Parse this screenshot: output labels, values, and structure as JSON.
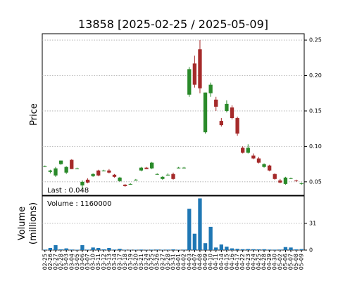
{
  "chart_data": {
    "type": "candlestick",
    "title": "13858   [2025-02-25 / 2025-05-09]",
    "ylabel": "Price",
    "volume_ylabel": [
      "Volume",
      "(millions)"
    ],
    "last_annotation": "Last : 0.048",
    "volume_annotation": "Volume : 1160000",
    "up_color": "#2a8a2a",
    "down_color": "#a52a2a",
    "volume_color": "#1f77b4",
    "grid": true,
    "categories": [
      "02-25",
      "02-26",
      "02-27",
      "02-28",
      "03-03",
      "03-04",
      "03-05",
      "03-06",
      "03-07",
      "03-10",
      "03-11",
      "03-12",
      "03-13",
      "03-14",
      "03-17",
      "03-18",
      "03-19",
      "03-20",
      "03-21",
      "03-24",
      "03-25",
      "03-26",
      "03-27",
      "03-28",
      "03-31",
      "04-01",
      "04-02",
      "04-03",
      "04-07",
      "04-08",
      "04-09",
      "04-10",
      "04-11",
      "04-14",
      "04-15",
      "04-16",
      "04-17",
      "04-22",
      "04-23",
      "04-24",
      "04-25",
      "04-28",
      "04-29",
      "04-30",
      "05-02",
      "05-06",
      "05-07",
      "05-08",
      "05-09"
    ],
    "open": [
      0.072,
      0.064,
      0.059,
      0.075,
      0.063,
      0.081,
      0.069,
      0.045,
      0.053,
      0.058,
      0.066,
      0.066,
      0.066,
      0.06,
      0.051,
      0.046,
      0.047,
      0.053,
      0.066,
      0.07,
      0.069,
      0.061,
      0.054,
      0.06,
      0.061,
      0.07,
      0.07,
      0.173,
      0.217,
      0.237,
      0.12,
      0.175,
      0.166,
      0.136,
      0.15,
      0.155,
      0.14,
      0.098,
      0.091,
      0.087,
      0.083,
      0.071,
      0.073,
      0.061,
      0.052,
      0.047,
      0.055,
      0.052,
      0.047
    ],
    "high": [
      0.073,
      0.067,
      0.071,
      0.08,
      0.072,
      0.082,
      0.07,
      0.052,
      0.055,
      0.062,
      0.067,
      0.067,
      0.068,
      0.061,
      0.057,
      0.047,
      0.048,
      0.054,
      0.071,
      0.071,
      0.078,
      0.062,
      0.058,
      0.062,
      0.063,
      0.071,
      0.071,
      0.212,
      0.228,
      0.25,
      0.176,
      0.19,
      0.17,
      0.14,
      0.165,
      0.158,
      0.142,
      0.1,
      0.103,
      0.09,
      0.085,
      0.076,
      0.074,
      0.062,
      0.054,
      0.057,
      0.056,
      0.053,
      0.049
    ],
    "low": [
      0.071,
      0.062,
      0.057,
      0.074,
      0.061,
      0.068,
      0.068,
      0.04,
      0.048,
      0.057,
      0.058,
      0.065,
      0.062,
      0.056,
      0.05,
      0.043,
      0.046,
      0.052,
      0.065,
      0.068,
      0.068,
      0.06,
      0.053,
      0.059,
      0.053,
      0.069,
      0.069,
      0.17,
      0.183,
      0.175,
      0.118,
      0.17,
      0.15,
      0.128,
      0.148,
      0.138,
      0.115,
      0.09,
      0.09,
      0.082,
      0.076,
      0.07,
      0.065,
      0.053,
      0.048,
      0.046,
      0.054,
      0.05,
      0.046
    ],
    "close": [
      0.072,
      0.066,
      0.069,
      0.08,
      0.071,
      0.068,
      0.069,
      0.05,
      0.049,
      0.061,
      0.059,
      0.066,
      0.063,
      0.057,
      0.056,
      0.044,
      0.047,
      0.053,
      0.07,
      0.068,
      0.077,
      0.061,
      0.057,
      0.06,
      0.054,
      0.07,
      0.07,
      0.209,
      0.187,
      0.182,
      0.176,
      0.187,
      0.156,
      0.13,
      0.16,
      0.14,
      0.118,
      0.091,
      0.098,
      0.083,
      0.077,
      0.075,
      0.066,
      0.054,
      0.049,
      0.056,
      0.055,
      0.051,
      0.048
    ],
    "volume": [
      0.5,
      2.5,
      5.7,
      0.8,
      2,
      0.6,
      0.4,
      5.7,
      0.5,
      3,
      2.5,
      0.8,
      2.5,
      0.6,
      1.5,
      0.4,
      0.3,
      0.4,
      0.6,
      0.3,
      0.5,
      0.6,
      0.4,
      0.5,
      0.8,
      0.4,
      0.5,
      48,
      19,
      60,
      8,
      27,
      3,
      6.5,
      4,
      2,
      1.5,
      1,
      1.2,
      1,
      0.8,
      1,
      0.6,
      0.5,
      0.6,
      3.5,
      3,
      0.8,
      1.16
    ],
    "ylim": [
      0.031,
      0.259
    ],
    "yticks": [
      0.05,
      {
        "value": 0.1,
        "label": "0.10"
      },
      0.15,
      {
        "value": 0.2,
        "label": "0.20"
      },
      0.25
    ],
    "volume_ylim": [
      0,
      62.8
    ],
    "volume_yticks": [
      0,
      31
    ]
  }
}
